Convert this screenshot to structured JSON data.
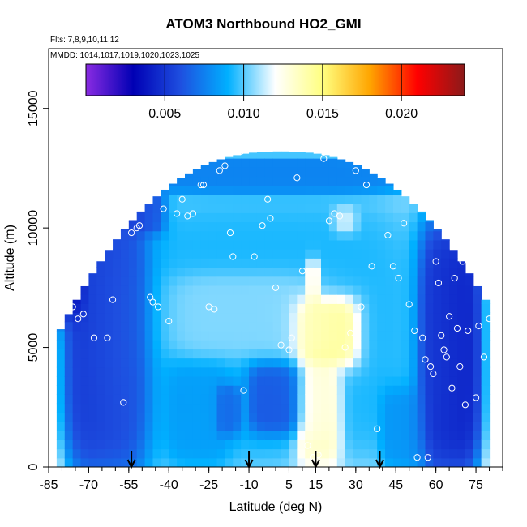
{
  "chart_data": {
    "type": "heatmap",
    "title": "ATOM3 Northbound HO2_GMI",
    "flights_label": "Flts: 7,8,9,10,11,12",
    "mmdd_label": "MMDD: 1014,1017,1019,1020,1023,1025",
    "xlabel": "Latitude (deg N)",
    "ylabel": "Altitude (m)",
    "xlim": [
      -85,
      85
    ],
    "ylim": [
      0,
      17500
    ],
    "x_ticks": [
      -85,
      -70,
      -55,
      -40,
      -25,
      -10,
      5,
      15,
      30,
      45,
      60,
      75
    ],
    "y_ticks": [
      0,
      5000,
      10000,
      15000
    ],
    "colorbar": {
      "min": 0.0,
      "max": 0.024,
      "ticks": [
        "0.005",
        "0.010",
        "0.015",
        "0.020"
      ],
      "tick_values": [
        0.005,
        0.01,
        0.015,
        0.02
      ],
      "colors": [
        "#8a2be2",
        "#0000b4",
        "#1e4fe0",
        "#00b0ff",
        "#ffffff",
        "#ffff80",
        "#ffa500",
        "#ff0000",
        "#8b1a1a"
      ]
    },
    "arrows_lat": [
      -54,
      -10,
      15,
      39
    ],
    "regions": [
      {
        "lat": [
          -78,
          -48
        ],
        "alt": [
          0,
          11000
        ],
        "value": 0.003
      },
      {
        "lat": [
          -60,
          55
        ],
        "alt": [
          0,
          11500
        ],
        "value": 0.008
      },
      {
        "lat": [
          -55,
          52
        ],
        "alt": [
          11500,
          13000
        ],
        "value": 0.006
      },
      {
        "lat": [
          -40,
          -18
        ],
        "alt": [
          200,
          4300
        ],
        "value": 0.0075
      },
      {
        "lat": [
          -40,
          16
        ],
        "alt": [
          4600,
          8000
        ],
        "value": 0.012
      },
      {
        "lat": [
          -22,
          -14
        ],
        "alt": [
          1400,
          3400
        ],
        "value": 0.004
      },
      {
        "lat": [
          -10,
          10
        ],
        "alt": [
          1500,
          4300
        ],
        "value": 0.003
      },
      {
        "lat": [
          8,
          24
        ],
        "alt": [
          300,
          4300
        ],
        "value": 0.017
      },
      {
        "lat": [
          8,
          30
        ],
        "alt": [
          4300,
          7000
        ],
        "value": 0.02
      },
      {
        "lat": [
          12,
          16
        ],
        "alt": [
          6800,
          8600
        ],
        "value": 0.016
      },
      {
        "lat": [
          22,
          30
        ],
        "alt": [
          9800,
          10800
        ],
        "value": 0.013
      },
      {
        "lat": [
          -56,
          -42
        ],
        "alt": [
          9800,
          11500
        ],
        "value": 0.004
      },
      {
        "lat": [
          40,
          55
        ],
        "alt": [
          0,
          3200
        ],
        "value": 0.007
      },
      {
        "lat": [
          54,
          76
        ],
        "alt": [
          0,
          10000
        ],
        "value": 0.002
      },
      {
        "lat": [
          -82,
          -72
        ],
        "alt": [
          6500,
          10500
        ],
        "value": 0.002
      }
    ],
    "observation_points": [
      [
        -83,
        7800
      ],
      [
        -80,
        10200
      ],
      [
        -76,
        6700
      ],
      [
        -74,
        6200
      ],
      [
        -72,
        6400
      ],
      [
        -70,
        10500
      ],
      [
        -68,
        5400
      ],
      [
        -66,
        10500
      ],
      [
        -63,
        5400
      ],
      [
        -61,
        7000
      ],
      [
        -58,
        11800
      ],
      [
        -57,
        2700
      ],
      [
        -54,
        9800
      ],
      [
        -52,
        10000
      ],
      [
        -51,
        10100
      ],
      [
        -47,
        7100
      ],
      [
        -46,
        6900
      ],
      [
        -44,
        6700
      ],
      [
        -42,
        10800
      ],
      [
        -40,
        6100
      ],
      [
        -37,
        10600
      ],
      [
        -35,
        11200
      ],
      [
        -33,
        10500
      ],
      [
        -31,
        10600
      ],
      [
        -28,
        11800
      ],
      [
        -27,
        11800
      ],
      [
        -25,
        6700
      ],
      [
        -23,
        6600
      ],
      [
        -21,
        12400
      ],
      [
        -19,
        12600
      ],
      [
        -17,
        9800
      ],
      [
        -16,
        8800
      ],
      [
        -13,
        13200
      ],
      [
        -12,
        3200
      ],
      [
        -8,
        8800
      ],
      [
        -5,
        10100
      ],
      [
        -3,
        11200
      ],
      [
        -2,
        10400
      ],
      [
        0,
        7500
      ],
      [
        2,
        5100
      ],
      [
        5,
        4900
      ],
      [
        6,
        5400
      ],
      [
        8,
        12100
      ],
      [
        10,
        8200
      ],
      [
        12,
        900
      ],
      [
        14,
        400
      ],
      [
        16,
        500
      ],
      [
        18,
        12900
      ],
      [
        20,
        10300
      ],
      [
        22,
        10600
      ],
      [
        24,
        10500
      ],
      [
        26,
        5000
      ],
      [
        28,
        5600
      ],
      [
        30,
        12400
      ],
      [
        32,
        6700
      ],
      [
        34,
        11800
      ],
      [
        36,
        8400
      ],
      [
        38,
        1600
      ],
      [
        40,
        12400
      ],
      [
        42,
        9700
      ],
      [
        44,
        8400
      ],
      [
        46,
        7900
      ],
      [
        48,
        10200
      ],
      [
        50,
        6800
      ],
      [
        52,
        5700
      ],
      [
        53,
        400
      ],
      [
        55,
        5400
      ],
      [
        56,
        4500
      ],
      [
        57,
        400
      ],
      [
        58,
        4200
      ],
      [
        59,
        3900
      ],
      [
        60,
        8600
      ],
      [
        61,
        7700
      ],
      [
        62,
        5500
      ],
      [
        63,
        4900
      ],
      [
        64,
        4600
      ],
      [
        65,
        6300
      ],
      [
        66,
        3300
      ],
      [
        67,
        7900
      ],
      [
        68,
        5800
      ],
      [
        69,
        4200
      ],
      [
        70,
        8600
      ],
      [
        71,
        2600
      ],
      [
        72,
        5700
      ],
      [
        73,
        8600
      ],
      [
        75,
        2900
      ],
      [
        76,
        5900
      ],
      [
        78,
        4600
      ],
      [
        80,
        6200
      ],
      [
        82,
        5800
      ]
    ]
  }
}
